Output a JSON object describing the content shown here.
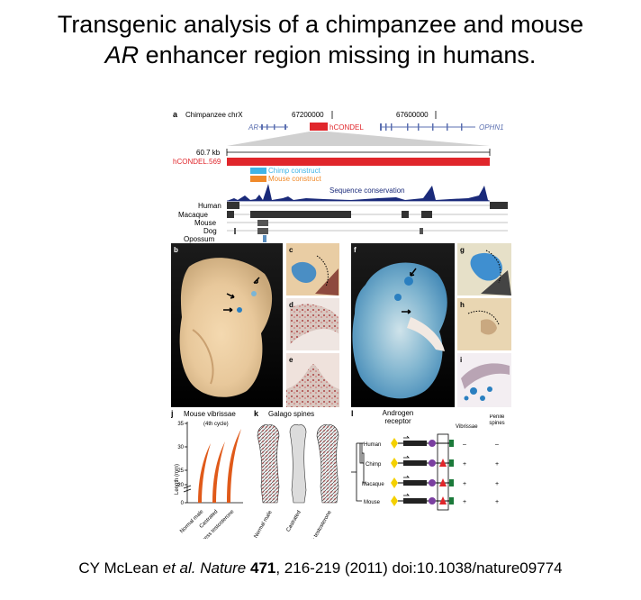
{
  "title": {
    "line1": "Transgenic analysis of a chimpanzee and mouse",
    "line2_italic": "AR",
    "line2_rest": " enhancer region missing in humans."
  },
  "panel_a": {
    "letter": "a",
    "chrom_label": "Chimpanzee chrX",
    "coord1": "67200000",
    "coord2": "67600000",
    "gene_left": "AR",
    "gene_right": "OPHN1",
    "hcondel_label": "hCONDEL",
    "scale_label": "60.7 kb",
    "hcondel_full": "hCONDEL.569",
    "chimp_construct": "Chimp construct",
    "mouse_construct": "Mouse construct",
    "conservation_label": "Sequence conservation",
    "species": [
      "Human",
      "Macaque",
      "Mouse",
      "Dog",
      "Opossum"
    ]
  },
  "photo_letters": [
    "b",
    "c",
    "d",
    "e",
    "f",
    "g",
    "h",
    "i"
  ],
  "panel_j": {
    "letter": "j",
    "title": "Mouse vibrissae",
    "subtitle": "(4th cycle)",
    "ylabel": "Length (mm)",
    "yticks": [
      "35",
      "30",
      "25",
      "20",
      "0"
    ],
    "xlabels": [
      "Normal male",
      "Castrated",
      "Excess testosterone"
    ]
  },
  "panel_k": {
    "letter": "k",
    "title": "Galago spines",
    "xlabels": [
      "Normal male",
      "Castrated",
      "Castrated + testosterone"
    ]
  },
  "panel_l": {
    "letter": "l",
    "header_ar": "Androgen receptor",
    "header_vib": "Vibrissae",
    "header_penile": "Penile spines",
    "rows": [
      {
        "species": "Human",
        "vib": "–",
        "pen": "–"
      },
      {
        "species": "Chimp",
        "vib": "+",
        "pen": "+"
      },
      {
        "species": "Macaque",
        "vib": "+",
        "pen": "+"
      },
      {
        "species": "Mouse",
        "vib": "+",
        "pen": "+"
      }
    ]
  },
  "citation": {
    "authors": "CY McLean ",
    "etal": "et al. Nature",
    "volume": "471",
    "rest": ", 216-219 (2011) doi:10.1038/nature09774"
  },
  "colors": {
    "hcondel_red": "#e0262b",
    "chimp_blue": "#3fb4e6",
    "mouse_orange": "#f08a2a",
    "whisker_orange": "#e05a1a",
    "lacz_blue": "#2a7fc0"
  }
}
